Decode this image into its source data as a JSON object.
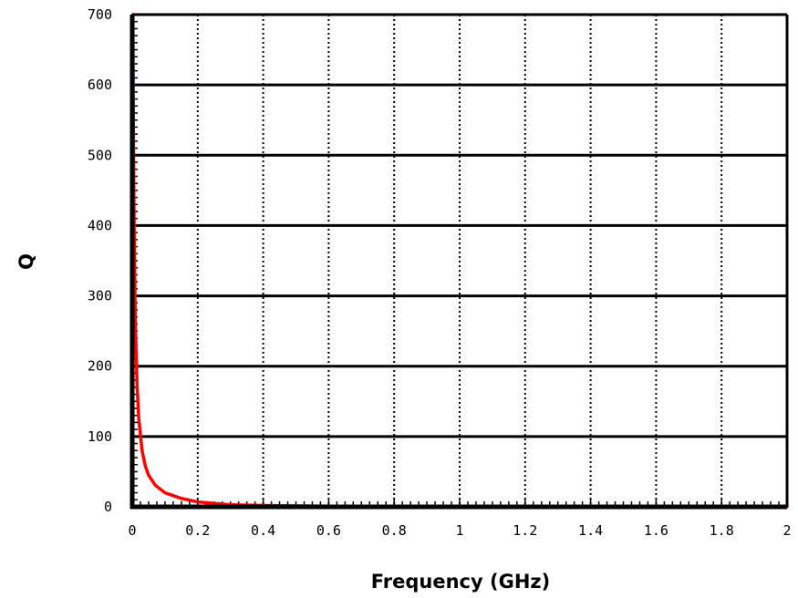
{
  "chart_data": {
    "type": "line",
    "title": "",
    "xlabel": "Frequency (GHz)",
    "ylabel": "Q",
    "xlim": [
      0,
      2
    ],
    "ylim": [
      0,
      700
    ],
    "x_ticks": [
      0,
      0.2,
      0.4,
      0.6,
      0.8,
      1,
      1.2,
      1.4,
      1.6,
      1.8,
      2
    ],
    "x_tick_labels": [
      "0",
      "0.2",
      "0.4",
      "0.6",
      "0.8",
      "1",
      "1.2",
      "1.4",
      "1.6",
      "1.8",
      "2"
    ],
    "y_ticks": [
      0,
      100,
      200,
      300,
      400,
      500,
      600,
      700
    ],
    "y_tick_labels": [
      "0",
      "100",
      "200",
      "300",
      "400",
      "500",
      "600",
      "700"
    ],
    "grid": true,
    "legend": "none",
    "series": [
      {
        "color": "#ff0000",
        "x": [
          0.002,
          0.003,
          0.005,
          0.007,
          0.01,
          0.015,
          0.02,
          0.03,
          0.04,
          0.05,
          0.07,
          0.1,
          0.15,
          0.2,
          0.3,
          0.4,
          0.6,
          0.8,
          1.0,
          1.2,
          1.4,
          1.6,
          1.8,
          2.0
        ],
        "y": [
          700,
          590,
          440,
          340,
          250,
          170,
          125,
          80,
          58,
          45,
          31,
          20,
          12,
          7,
          3,
          2,
          1,
          1,
          0.5,
          0.5,
          0.3,
          0.3,
          0.2,
          0.2
        ]
      }
    ]
  }
}
